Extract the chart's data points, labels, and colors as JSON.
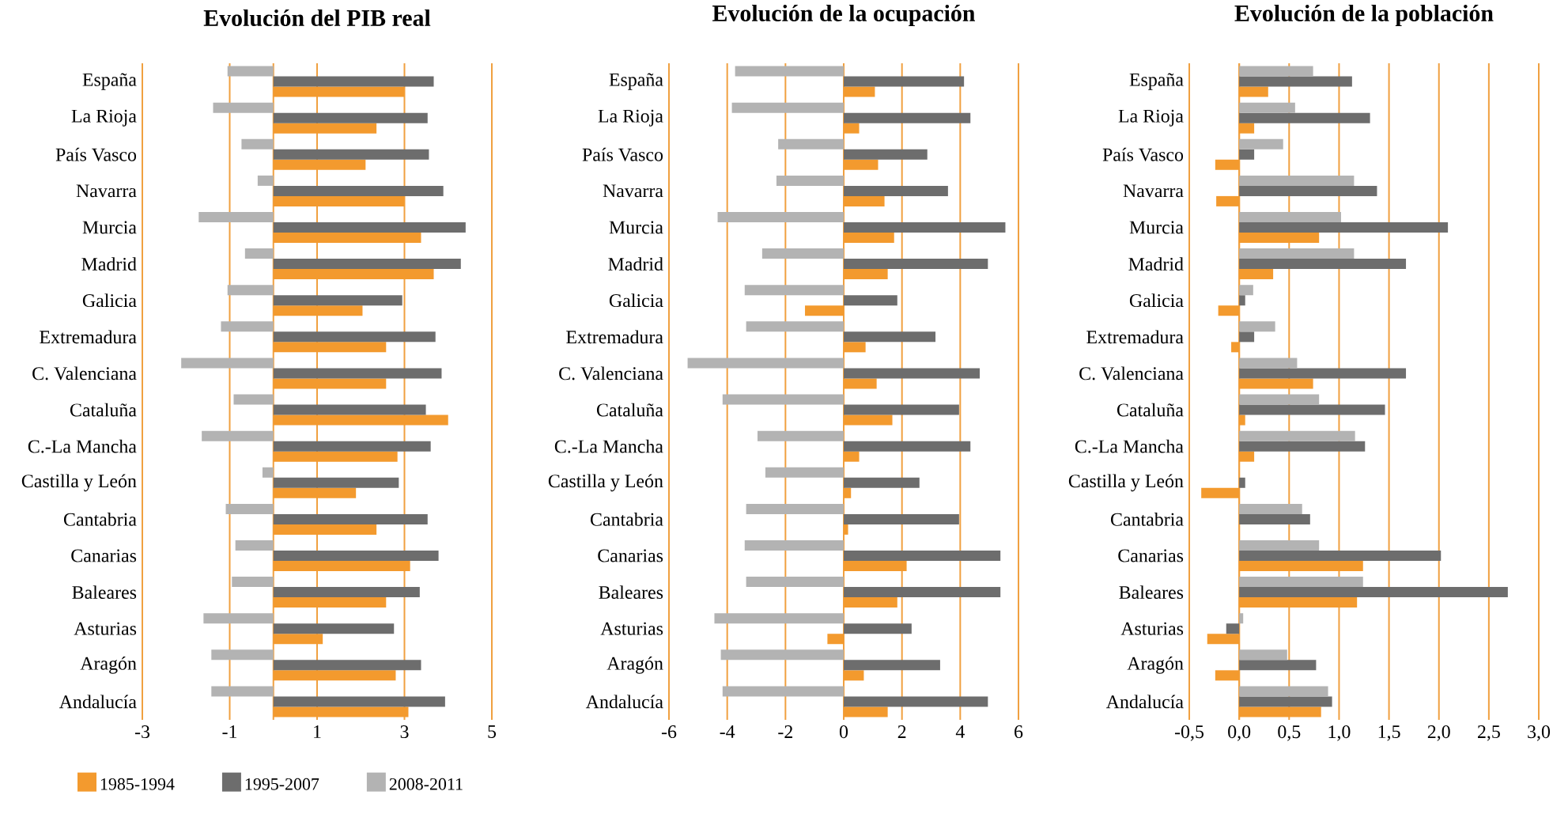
{
  "chart_data": [
    {
      "type": "bar",
      "orientation": "horizontal",
      "title": "Evolución del PIB real",
      "categories": [
        "España",
        "La Rioja",
        "País Vasco",
        "Navarra",
        "Murcia",
        "Madrid",
        "Galicia",
        "Extremadura",
        "C. Valenciana",
        "Cataluña",
        "C.-La Mancha",
        "Castilla y León",
        "Cantabria",
        "Canarias",
        "Baleares",
        "Asturias",
        "Aragón",
        "Andalucía"
      ],
      "series": [
        {
          "name": "1985-1994",
          "color": "#f39a2e",
          "values": [
            3.0,
            2.36,
            2.11,
            3.0,
            3.38,
            3.67,
            2.04,
            2.58,
            2.58,
            4.0,
            2.84,
            1.89,
            2.36,
            3.13,
            2.58,
            1.13,
            2.8,
            3.09
          ]
        },
        {
          "name": "1995-2007",
          "color": "#6d6d6d",
          "values": [
            3.67,
            3.53,
            3.56,
            3.89,
            4.4,
            4.29,
            2.95,
            3.71,
            3.85,
            3.49,
            3.6,
            2.87,
            3.53,
            3.78,
            3.35,
            2.76,
            3.38,
            3.93
          ]
        },
        {
          "name": "2008-2011",
          "color": "#b3b3b3",
          "values": [
            -1.05,
            -1.38,
            -0.73,
            -0.36,
            -1.71,
            -0.65,
            -1.05,
            -1.2,
            -2.11,
            -0.91,
            -1.64,
            -0.25,
            -1.09,
            -0.87,
            -0.95,
            -1.6,
            -1.42,
            -1.42
          ]
        }
      ],
      "xlim": [
        -3,
        5
      ],
      "xticks": [
        -3,
        -1,
        1,
        3,
        5
      ],
      "grid": "x",
      "legend": "bottom"
    },
    {
      "type": "bar",
      "orientation": "horizontal",
      "title": "Evolución de la ocupación",
      "categories": [
        "España",
        "La Rioja",
        "País Vasco",
        "Navarra",
        "Murcia",
        "Madrid",
        "Galicia",
        "Extremadura",
        "C. Valenciana",
        "Cataluña",
        "C.-La Mancha",
        "Castilla y León",
        "Cantabria",
        "Canarias",
        "Baleares",
        "Asturias",
        "Aragón",
        "Andalucía"
      ],
      "series": [
        {
          "color": "#f39a2e",
          "values": [
            1.07,
            0.53,
            1.18,
            1.4,
            1.73,
            1.51,
            -1.33,
            0.75,
            1.13,
            1.67,
            0.53,
            0.25,
            0.15,
            2.16,
            1.84,
            -0.56,
            0.69,
            1.51
          ]
        },
        {
          "color": "#6d6d6d",
          "values": [
            4.13,
            4.35,
            2.87,
            3.58,
            5.55,
            4.95,
            1.84,
            3.15,
            4.67,
            3.96,
            4.35,
            2.6,
            3.96,
            5.38,
            5.38,
            2.33,
            3.31,
            4.95
          ]
        },
        {
          "color": "#b3b3b3",
          "values": [
            -3.73,
            -3.84,
            -2.25,
            -2.31,
            -4.33,
            -2.8,
            -3.4,
            -3.35,
            -5.36,
            -4.16,
            -2.96,
            -2.69,
            -3.35,
            -3.4,
            -3.35,
            -4.44,
            -4.22,
            -4.16
          ]
        }
      ],
      "xlim": [
        -6,
        6
      ],
      "xticks": [
        -6,
        -4,
        -2,
        0,
        2,
        4,
        6
      ],
      "grid": "x"
    },
    {
      "type": "bar",
      "orientation": "horizontal",
      "title": "Evolución de la población",
      "categories": [
        "España",
        "La Rioja",
        "País Vasco",
        "Navarra",
        "Murcia",
        "Madrid",
        "Galicia",
        "Extremadura",
        "C. Valenciana",
        "Cataluña",
        "C.-La Mancha",
        "Castilla y León",
        "Cantabria",
        "Canarias",
        "Baleares",
        "Asturias",
        "Aragón",
        "Andalucía"
      ],
      "series": [
        {
          "color": "#f39a2e",
          "values": [
            0.29,
            0.15,
            -0.24,
            -0.23,
            0.8,
            0.34,
            -0.21,
            -0.08,
            0.74,
            0.06,
            0.15,
            -0.38,
            0,
            1.24,
            1.18,
            -0.32,
            -0.24,
            0.82
          ]
        },
        {
          "color": "#6d6d6d",
          "values": [
            1.13,
            1.31,
            0.15,
            1.38,
            2.09,
            1.67,
            0.06,
            0.15,
            1.67,
            1.46,
            1.26,
            0.06,
            0.71,
            2.02,
            2.69,
            -0.13,
            0.77,
            0.93
          ]
        },
        {
          "color": "#b3b3b3",
          "values": [
            0.74,
            0.56,
            0.44,
            1.15,
            1.02,
            1.15,
            0.14,
            0.36,
            0.58,
            0.8,
            1.16,
            0,
            0.63,
            0.8,
            1.24,
            0.04,
            0.48,
            0.89
          ]
        }
      ],
      "xlim": [
        -0.5,
        3.0
      ],
      "xticks": [
        {
          "value": -0.5,
          "label": "-0,5"
        },
        {
          "value": 0,
          "label": "0,0"
        },
        {
          "value": 0.5,
          "label": "0,5"
        },
        {
          "value": 1.0,
          "label": "1,0"
        },
        {
          "value": 1.5,
          "label": "1,5"
        },
        {
          "value": 2.0,
          "label": "2,0"
        },
        {
          "value": 2.5,
          "label": "2,5"
        },
        {
          "value": 3.0,
          "label": "3,0"
        }
      ],
      "grid": "x"
    }
  ]
}
